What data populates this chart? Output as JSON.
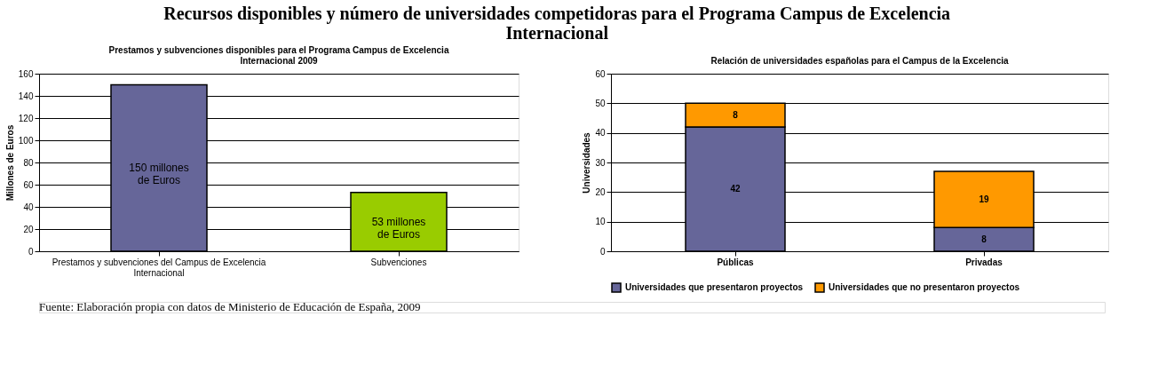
{
  "chart_data": [
    {
      "type": "other",
      "title": "Recursos disponibles y número de universidades competidoras para el Programa Campus de Excelencia Internacional",
      "annotations": [
        "Fuente: Elaboración propia con datos de Ministerio de Educación de España, 2009"
      ]
    },
    {
      "type": "bar",
      "title": "Prestamos y subvenciones disponibles para el Programa Campus de Excelencia Internacional 2009",
      "ylabel": "Millones de Euros",
      "categories": [
        "Prestamos y subvenciones del Campus de Excelencia Internacional",
        "Subvenciones"
      ],
      "values": [
        150,
        53
      ],
      "colors": [
        "#666699",
        "#99cc00"
      ],
      "value_labels": [
        "150 millones de Euros",
        "53 millones de Euros"
      ],
      "ylim": [
        0,
        160
      ],
      "yticks": [
        0,
        20,
        40,
        60,
        80,
        100,
        120,
        140,
        160
      ],
      "grid": "y"
    },
    {
      "type": "bar",
      "title": "Relación de universidades españolas para el Campus de la Excelencia",
      "ylabel": "Universidades",
      "categories": [
        "Públicas",
        "Privadas"
      ],
      "stacked": true,
      "series": [
        {
          "name": "Universidades que presentaron proyectos",
          "color": "#666699",
          "values": [
            42,
            8
          ]
        },
        {
          "name": "Universidades que no presentaron proyectos",
          "color": "#ff9900",
          "values": [
            8,
            19
          ]
        }
      ],
      "ylim": [
        0,
        60
      ],
      "yticks": [
        0,
        10,
        20,
        30,
        40,
        50,
        60
      ],
      "grid": "y",
      "data_labels": true,
      "legend": "bottom"
    }
  ]
}
